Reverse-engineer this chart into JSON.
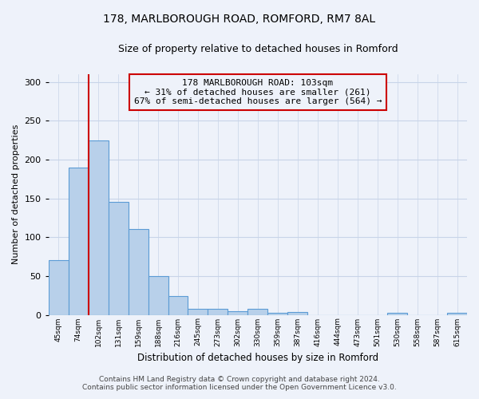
{
  "title1": "178, MARLBOROUGH ROAD, ROMFORD, RM7 8AL",
  "title2": "Size of property relative to detached houses in Romford",
  "xlabel": "Distribution of detached houses by size in Romford",
  "ylabel": "Number of detached properties",
  "bar_labels": [
    "45sqm",
    "74sqm",
    "102sqm",
    "131sqm",
    "159sqm",
    "188sqm",
    "216sqm",
    "245sqm",
    "273sqm",
    "302sqm",
    "330sqm",
    "359sqm",
    "387sqm",
    "416sqm",
    "444sqm",
    "473sqm",
    "501sqm",
    "530sqm",
    "558sqm",
    "587sqm",
    "615sqm"
  ],
  "bar_values": [
    70,
    190,
    225,
    145,
    110,
    50,
    24,
    8,
    8,
    5,
    8,
    3,
    4,
    0,
    0,
    0,
    0,
    3,
    0,
    0,
    3
  ],
  "bar_color": "#b8d0ea",
  "bar_edge_color": "#5b9bd5",
  "grid_color": "#c8d4e8",
  "annotation_box_color": "#cc0000",
  "property_line_color": "#cc0000",
  "property_bar_index": 2,
  "annotation_text": "178 MARLBOROUGH ROAD: 103sqm\n← 31% of detached houses are smaller (261)\n67% of semi-detached houses are larger (564) →",
  "footer1": "Contains HM Land Registry data © Crown copyright and database right 2024.",
  "footer2": "Contains public sector information licensed under the Open Government Licence v3.0.",
  "ylim": [
    0,
    310
  ],
  "yticks": [
    0,
    50,
    100,
    150,
    200,
    250,
    300
  ],
  "background_color": "#eef2fa"
}
